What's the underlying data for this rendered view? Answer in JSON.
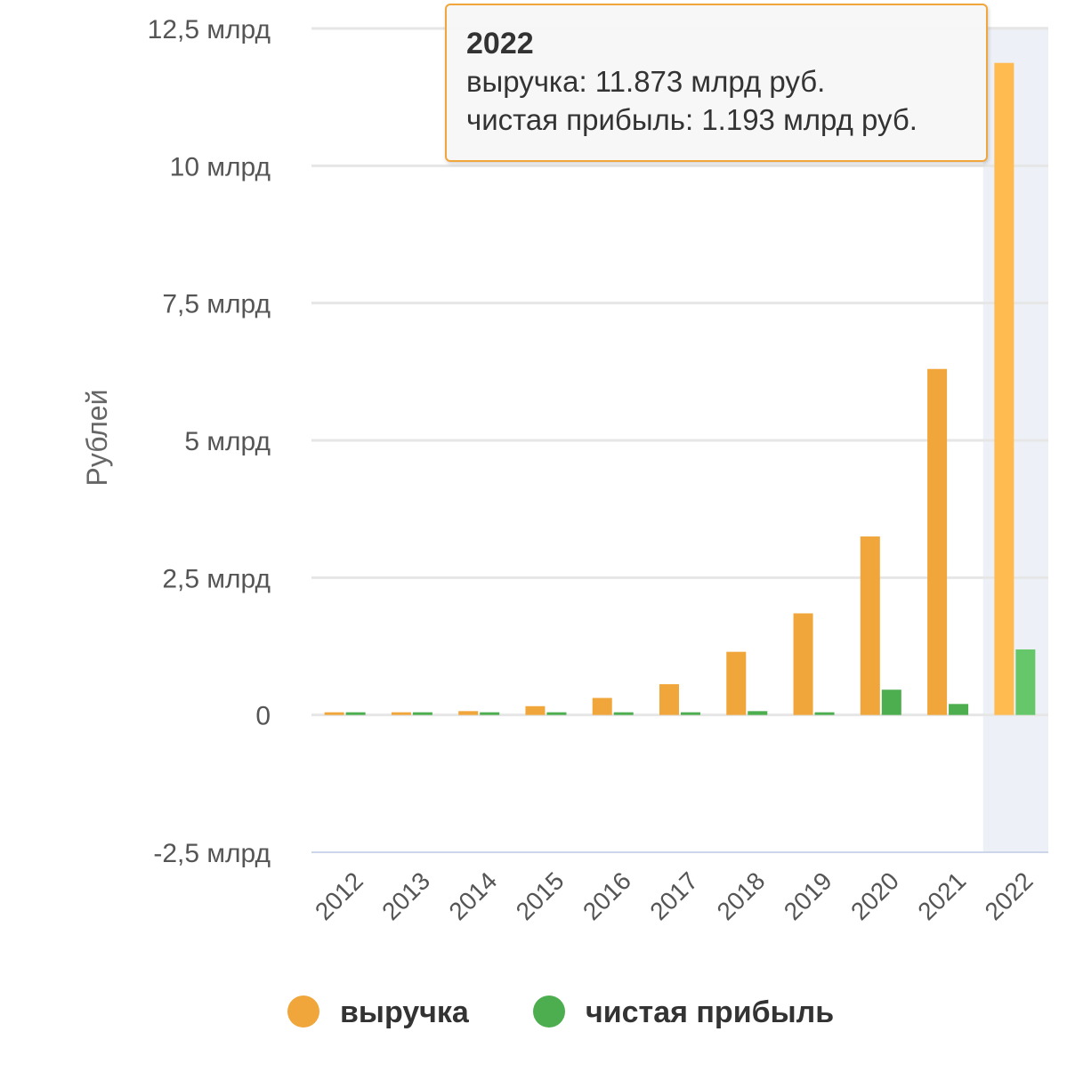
{
  "chart_data": {
    "type": "bar",
    "ylabel": "Рублей",
    "ylim": [
      -2.5,
      12.5
    ],
    "yticks": [
      {
        "value": -2.5,
        "label": "-2,5 млрд"
      },
      {
        "value": 0,
        "label": "0"
      },
      {
        "value": 2.5,
        "label": "2,5 млрд"
      },
      {
        "value": 5,
        "label": "5 млрд"
      },
      {
        "value": 7.5,
        "label": "7,5 млрд"
      },
      {
        "value": 10,
        "label": "10 млрд"
      },
      {
        "value": 12.5,
        "label": "12,5 млрд"
      }
    ],
    "categories": [
      "2012",
      "2013",
      "2014",
      "2015",
      "2016",
      "2017",
      "2018",
      "2019",
      "2020",
      "2021",
      "2022"
    ],
    "series": [
      {
        "name": "выручка",
        "color": "#f0a63a",
        "highlight_color": "#ffbb50",
        "values": [
          0.02,
          0.02,
          0.07,
          0.16,
          0.31,
          0.56,
          1.15,
          1.85,
          3.25,
          6.3,
          11.873
        ]
      },
      {
        "name": "чистая прибыль",
        "color": "#4cae4f",
        "highlight_color": "#66c76a",
        "values": [
          0.0,
          0.0,
          0.02,
          0.02,
          0.03,
          0.03,
          0.07,
          0.03,
          0.46,
          0.2,
          1.193
        ]
      }
    ],
    "highlighted_category": "2022",
    "legend_position": "bottom",
    "grid": true
  },
  "tooltip": {
    "title": "2022",
    "rows": [
      "выручка: 11.873 млрд руб.",
      "чистая прибыль: 1.193 млрд руб."
    ]
  }
}
